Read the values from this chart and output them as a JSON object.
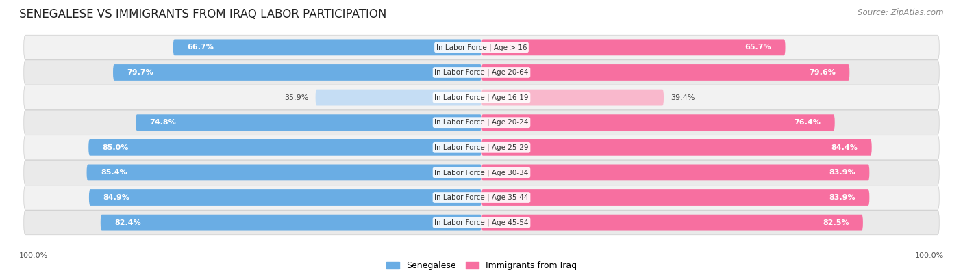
{
  "title": "SENEGALESE VS IMMIGRANTS FROM IRAQ LABOR PARTICIPATION",
  "source": "Source: ZipAtlas.com",
  "categories": [
    "In Labor Force | Age > 16",
    "In Labor Force | Age 20-64",
    "In Labor Force | Age 16-19",
    "In Labor Force | Age 20-24",
    "In Labor Force | Age 25-29",
    "In Labor Force | Age 30-34",
    "In Labor Force | Age 35-44",
    "In Labor Force | Age 45-54"
  ],
  "senegalese_values": [
    66.7,
    79.7,
    35.9,
    74.8,
    85.0,
    85.4,
    84.9,
    82.4
  ],
  "iraq_values": [
    65.7,
    79.6,
    39.4,
    76.4,
    84.4,
    83.9,
    83.9,
    82.5
  ],
  "senegalese_color": "#6aade4",
  "iraq_color": "#f76fa0",
  "senegalese_color_light": "#c5ddf4",
  "iraq_color_light": "#f9b8cc",
  "row_bg_even": "#f0f0f0",
  "row_bg_odd": "#e8e8e8",
  "max_value": 100.0,
  "bar_height": 0.62,
  "legend_senegalese": "Senegalese",
  "legend_iraq": "Immigrants from Iraq",
  "title_fontsize": 12,
  "source_fontsize": 8.5,
  "label_fontsize": 8,
  "category_fontsize": 7.5,
  "legend_fontsize": 9,
  "axis_label_fontsize": 8,
  "bottom_label": "100.0%"
}
